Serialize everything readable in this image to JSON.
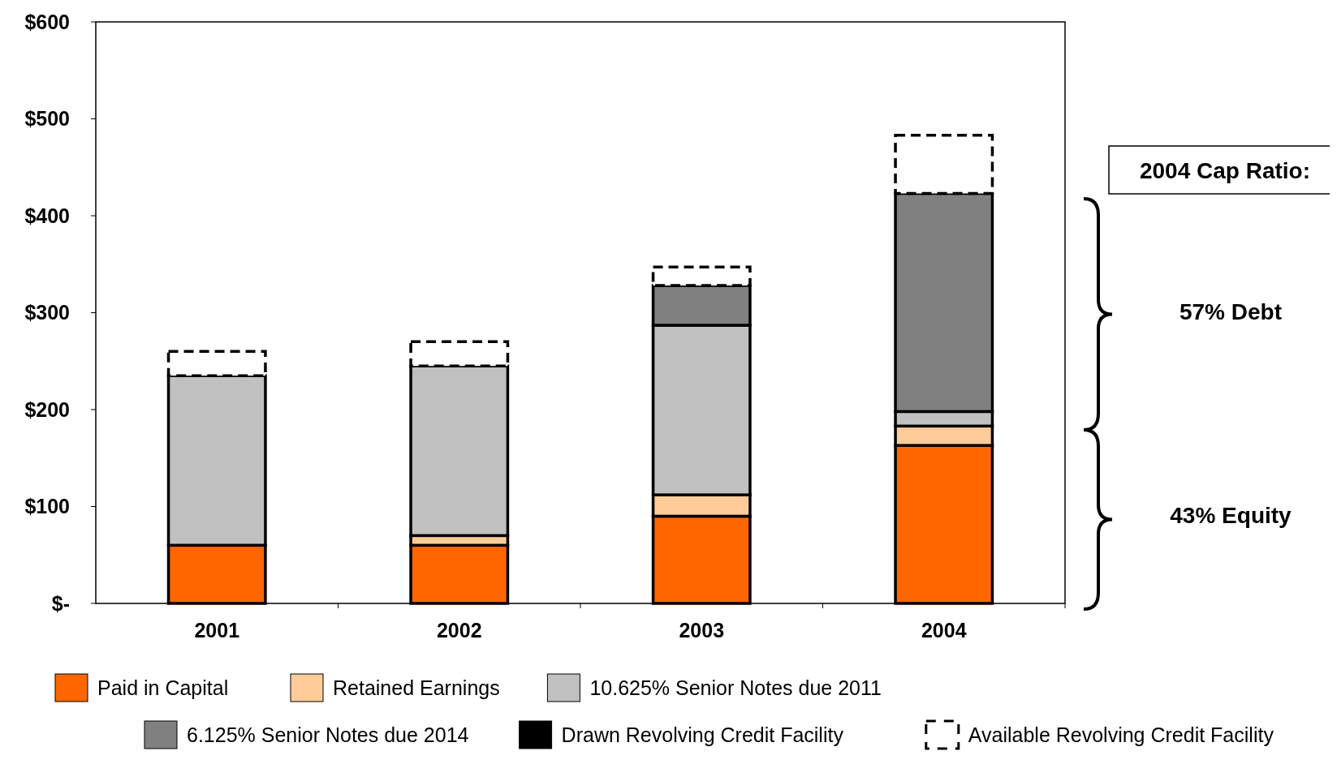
{
  "chart_data": {
    "type": "bar",
    "stacked": true,
    "categories": [
      "2001",
      "2002",
      "2003",
      "2004"
    ],
    "series": [
      {
        "name": "Paid in Capital",
        "color": "#ff6600",
        "values": [
          60,
          60,
          90,
          163
        ]
      },
      {
        "name": "Retained Earnings",
        "color": "#ffcc99",
        "values": [
          0,
          10,
          22,
          20
        ]
      },
      {
        "name": "10.625% Senior Notes due 2011",
        "color": "#c0c0c0",
        "values": [
          175,
          175,
          175,
          15
        ]
      },
      {
        "name": "6.125% Senior Notes due 2014",
        "color": "#808080",
        "values": [
          0,
          0,
          41,
          225
        ]
      },
      {
        "name": "Drawn Revolving Credit Facility",
        "color": "#000000",
        "values": [
          0,
          0,
          0,
          0
        ]
      },
      {
        "name": "Available Revolving Credit Facility",
        "color": "#ffffff",
        "line_style": "dashed",
        "values": [
          25,
          25,
          19,
          60
        ]
      }
    ],
    "ylim": [
      0,
      600
    ],
    "yticks": [
      {
        "value": 0,
        "label": "$-"
      },
      {
        "value": 100,
        "label": "$100"
      },
      {
        "value": 200,
        "label": "$200"
      },
      {
        "value": 300,
        "label": "$300"
      },
      {
        "value": 400,
        "label": "$400"
      },
      {
        "value": 500,
        "label": "$500"
      },
      {
        "value": 600,
        "label": "$600"
      }
    ],
    "legend": "bottom",
    "annotations": [
      "2004 Cap Ratio:",
      "57% Debt",
      "43% Equity"
    ]
  }
}
